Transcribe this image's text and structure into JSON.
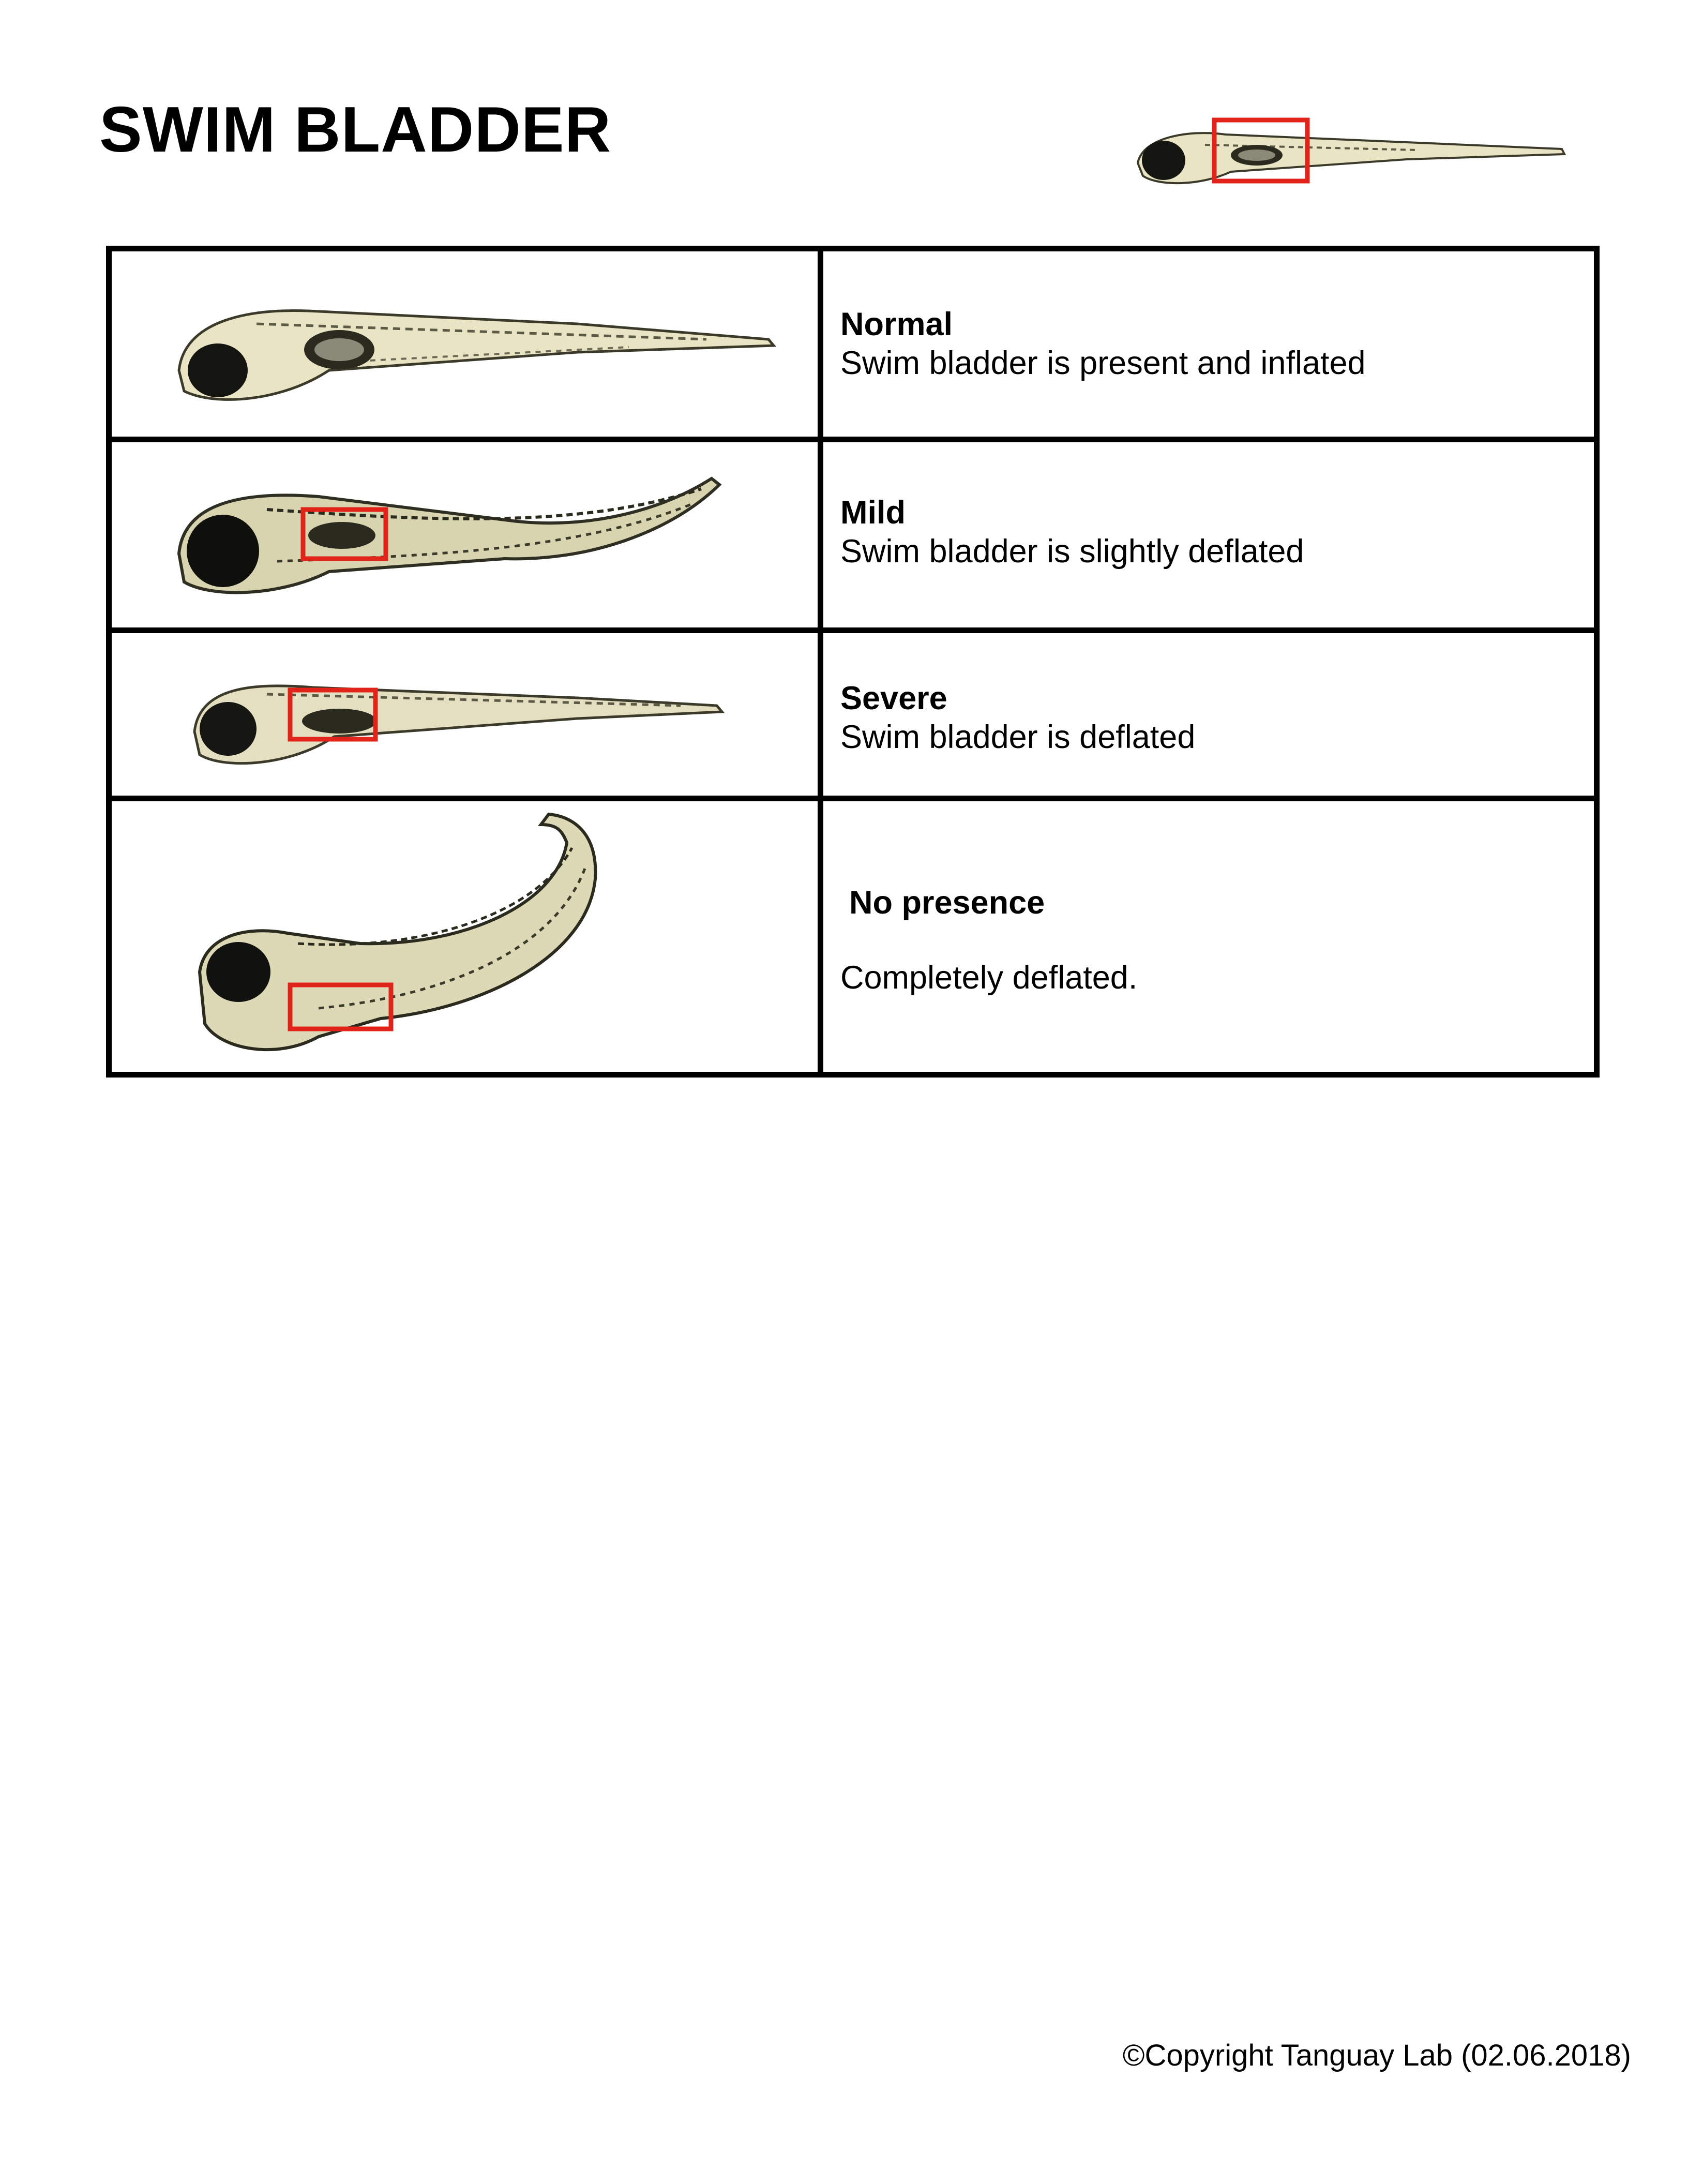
{
  "page": {
    "title": "SWIM BLADDER",
    "copyright": "©Copyright Tanguay Lab (02.06.2018)"
  },
  "colors": {
    "highlight_box": "#e2231a",
    "larva_body": "#e8e4c4",
    "larva_pigment": "#2a2a1e"
  },
  "reference_image": {
    "icon": "zebrafish-larva-with-swim-bladder-highlight"
  },
  "rows": [
    {
      "image_icon": "larva-normal",
      "severity": "Normal",
      "description": "Swim bladder is present and inflated"
    },
    {
      "image_icon": "larva-mild",
      "severity": "Mild",
      "description": "Swim bladder is slightly deflated"
    },
    {
      "image_icon": "larva-severe",
      "severity": "Severe",
      "description": "Swim bladder is deflated"
    },
    {
      "image_icon": "larva-no-presence",
      "severity": "No presence",
      "description": "Completely deflated."
    }
  ]
}
